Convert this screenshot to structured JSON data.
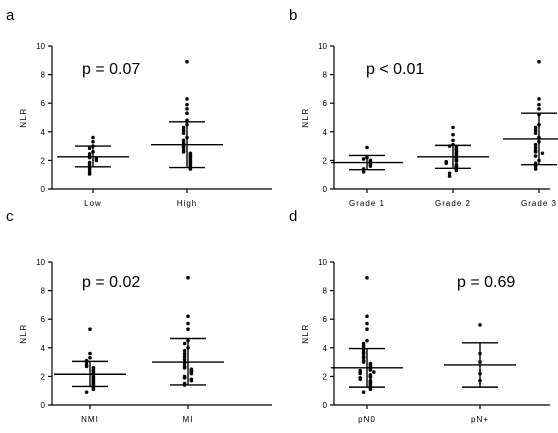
{
  "chart_data": [
    {
      "panel": "a",
      "type": "scatter",
      "ylabel": "NLR",
      "ylim": [
        0,
        10
      ],
      "yticks": [
        "0",
        "2",
        "4",
        "6",
        "8",
        "10"
      ],
      "annotation": "p = 0.07",
      "categories": [
        "Low",
        "High"
      ],
      "groups": [
        {
          "category": "Low",
          "mean": 2.25,
          "sd_lower": 1.55,
          "sd_upper": 3.0,
          "points": [
            3.6,
            3.3,
            3.0,
            2.85,
            2.6,
            2.45,
            2.3,
            2.2,
            2.1,
            2.0,
            1.85,
            1.7,
            1.5,
            1.35,
            1.15,
            1.05
          ]
        },
        {
          "category": "High",
          "mean": 3.1,
          "sd_lower": 1.5,
          "sd_upper": 4.7,
          "points": [
            8.9,
            6.3,
            5.9,
            5.6,
            5.3,
            4.8,
            4.5,
            4.3,
            4.1,
            3.9,
            3.6,
            3.4,
            3.2,
            3.0,
            2.9,
            2.7,
            2.6,
            2.5,
            2.4,
            2.3,
            2.2,
            2.1,
            2.0,
            1.9,
            1.8,
            1.7,
            1.6,
            1.5,
            1.4
          ]
        }
      ]
    },
    {
      "panel": "b",
      "type": "scatter",
      "ylabel": "NLR",
      "ylim": [
        0,
        10
      ],
      "yticks": [
        "0",
        "2",
        "4",
        "6",
        "8",
        "10"
      ],
      "annotation": "p < 0.01",
      "categories": [
        "Grade 1",
        "Grade 2",
        "Grade 3"
      ],
      "groups": [
        {
          "category": "Grade 1",
          "mean": 1.85,
          "sd_lower": 1.35,
          "sd_upper": 2.35,
          "points": [
            2.9,
            2.2,
            2.1,
            2.0,
            1.9,
            1.8,
            1.7,
            1.6,
            1.4,
            1.2
          ]
        },
        {
          "category": "Grade 2",
          "mean": 2.25,
          "sd_lower": 1.45,
          "sd_upper": 3.05,
          "points": [
            4.3,
            3.8,
            3.4,
            3.1,
            3.0,
            2.9,
            2.8,
            2.7,
            2.6,
            2.5,
            2.4,
            2.3,
            2.2,
            2.1,
            2.0,
            1.95,
            1.9,
            1.8,
            1.7,
            1.6,
            1.5,
            1.4,
            1.3,
            1.1,
            0.9
          ]
        },
        {
          "category": "Grade 3",
          "mean": 3.5,
          "sd_lower": 1.7,
          "sd_upper": 5.3,
          "points": [
            8.9,
            6.3,
            5.9,
            5.6,
            5.2,
            4.5,
            4.3,
            4.1,
            3.9,
            3.6,
            3.3,
            3.1,
            2.9,
            2.7,
            2.6,
            2.5,
            2.3,
            2.0,
            1.8,
            1.6,
            1.4
          ]
        }
      ]
    },
    {
      "panel": "c",
      "type": "scatter",
      "ylabel": "NLR",
      "ylim": [
        0,
        10
      ],
      "yticks": [
        "0",
        "2",
        "4",
        "6",
        "8",
        "10"
      ],
      "annotation": "p = 0.02",
      "categories": [
        "NMI",
        "MI"
      ],
      "groups": [
        {
          "category": "NMI",
          "mean": 2.15,
          "sd_lower": 1.3,
          "sd_upper": 3.05,
          "points": [
            5.3,
            3.6,
            3.3,
            3.1,
            3.0,
            2.8,
            2.7,
            2.6,
            2.5,
            2.4,
            2.3,
            2.2,
            2.1,
            2.0,
            1.9,
            1.8,
            1.7,
            1.6,
            1.5,
            1.4,
            1.3,
            1.2,
            1.1,
            0.9
          ]
        },
        {
          "category": "MI",
          "mean": 3.0,
          "sd_lower": 1.4,
          "sd_upper": 4.65,
          "points": [
            8.9,
            6.2,
            5.7,
            5.3,
            4.5,
            4.3,
            4.0,
            3.8,
            3.6,
            3.4,
            3.2,
            3.0,
            2.9,
            2.7,
            2.6,
            2.5,
            2.4,
            2.3,
            2.2,
            2.0,
            1.9,
            1.8,
            1.7,
            1.5,
            1.4
          ]
        }
      ]
    },
    {
      "panel": "d",
      "type": "scatter",
      "ylabel": "NLR",
      "ylim": [
        0,
        10
      ],
      "yticks": [
        "0",
        "2",
        "4",
        "6",
        "8",
        "10"
      ],
      "annotation": "p = 0.69",
      "categories": [
        "pN0",
        "pN+"
      ],
      "groups": [
        {
          "category": "pN0",
          "mean": 2.6,
          "sd_lower": 1.25,
          "sd_upper": 3.95,
          "points": [
            8.9,
            6.2,
            5.7,
            5.3,
            4.5,
            4.3,
            4.1,
            3.9,
            3.7,
            3.6,
            3.4,
            3.3,
            3.1,
            3.0,
            2.9,
            2.8,
            2.7,
            2.6,
            2.5,
            2.45,
            2.4,
            2.35,
            2.3,
            2.2,
            2.1,
            2.0,
            1.95,
            1.9,
            1.8,
            1.7,
            1.6,
            1.5,
            1.4,
            1.3,
            1.2,
            1.1,
            0.9
          ]
        },
        {
          "category": "pN+",
          "mean": 2.8,
          "sd_lower": 1.25,
          "sd_upper": 4.35,
          "points": [
            5.6,
            3.6,
            3.0,
            2.2,
            1.7
          ]
        }
      ]
    }
  ]
}
